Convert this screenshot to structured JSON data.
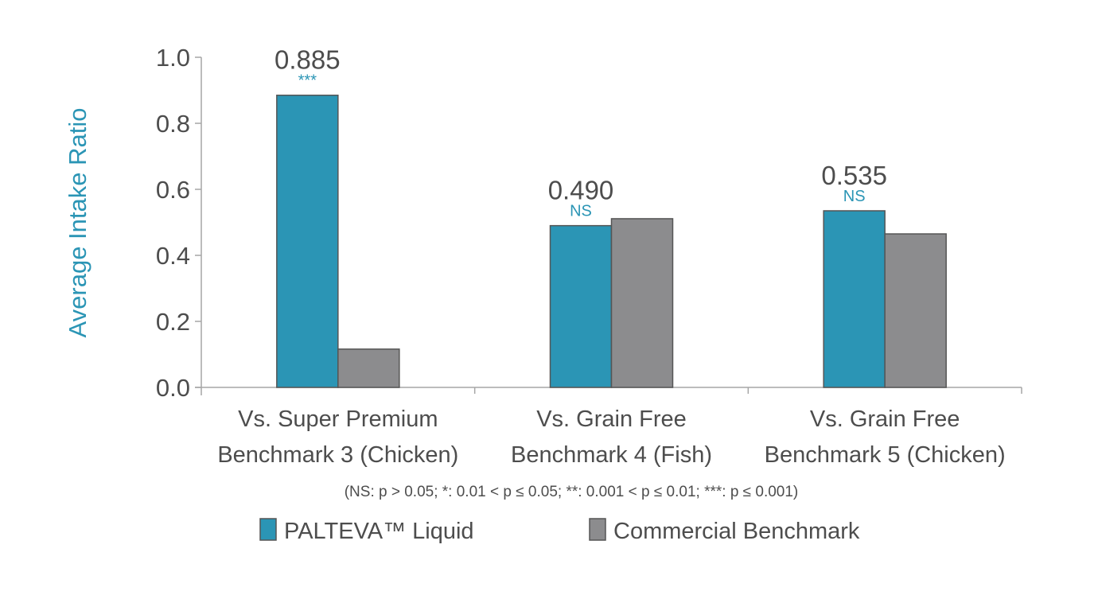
{
  "chart_data": {
    "type": "bar",
    "ylabel": "Average Intake Ratio",
    "xlabel": "",
    "ylim": [
      0,
      1.0
    ],
    "yticks": [
      "0.0",
      "0.2",
      "0.4",
      "0.6",
      "0.8",
      "1.0"
    ],
    "categories": [
      [
        "Vs. Super Premium",
        "Benchmark 3 (Chicken)"
      ],
      [
        "Vs. Grain Free",
        "Benchmark 4 (Fish)"
      ],
      [
        "Vs. Grain Free",
        "Benchmark 5 (Chicken)"
      ]
    ],
    "series": [
      {
        "name": "PALTEVA™  Liquid",
        "color": "#2b95b5",
        "values": [
          0.885,
          0.49,
          0.535
        ]
      },
      {
        "name": "Commercial Benchmark",
        "color": "#8c8c8e",
        "values": [
          0.116,
          0.511,
          0.465
        ]
      }
    ],
    "data_labels": [
      "0.885",
      "0.490",
      "0.535"
    ],
    "significance": [
      "***",
      "NS",
      "NS"
    ],
    "footnote": "(NS: p > 0.05; *: 0.01 < p ≤ 0.05; **: 0.001 < p ≤ 0.01; ***: p ≤ 0.001)",
    "legend_position": "bottom",
    "grid": false
  }
}
